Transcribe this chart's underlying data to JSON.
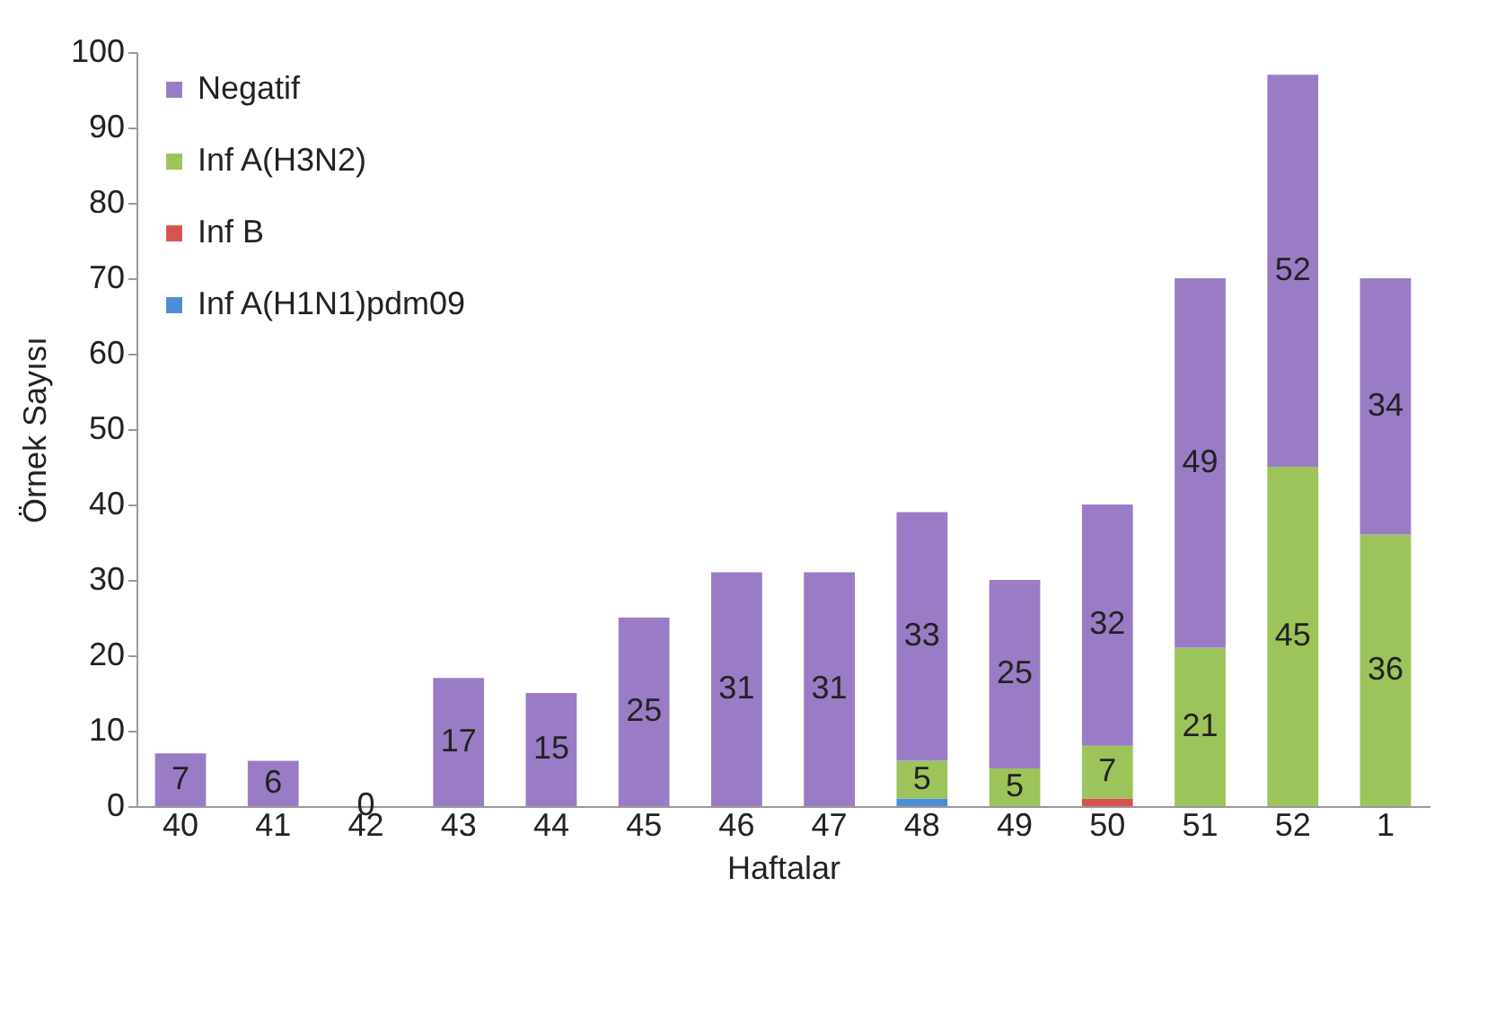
{
  "chart_data": {
    "type": "bar",
    "stacked": true,
    "xlabel": "Haftalar",
    "ylabel": "Örnek Sayısı",
    "categories": [
      "40",
      "41",
      "42",
      "43",
      "44",
      "45",
      "46",
      "47",
      "48",
      "49",
      "50",
      "51",
      "52",
      "1"
    ],
    "series": [
      {
        "name": "Inf A(H1N1)pdm09",
        "color": "#4a8fd6",
        "values": [
          0,
          0,
          0,
          0,
          0,
          0,
          0,
          0,
          1,
          0,
          0,
          0,
          0,
          0
        ],
        "value_labels": [
          null,
          null,
          null,
          null,
          null,
          null,
          null,
          null,
          null,
          null,
          null,
          null,
          null,
          null
        ]
      },
      {
        "name": "Inf B",
        "color": "#d9534f",
        "values": [
          0,
          0,
          0,
          0,
          0,
          0,
          0,
          0,
          0,
          0,
          1,
          0,
          0,
          0
        ],
        "value_labels": [
          null,
          null,
          null,
          null,
          null,
          null,
          null,
          null,
          null,
          null,
          null,
          null,
          null,
          null
        ]
      },
      {
        "name": "Inf A(H3N2)",
        "color": "#9cc45a",
        "values": [
          0,
          0,
          0,
          0,
          0,
          0,
          0,
          0,
          5,
          5,
          7,
          21,
          45,
          36
        ],
        "value_labels": [
          null,
          null,
          null,
          null,
          null,
          null,
          null,
          null,
          "5",
          "5",
          "7",
          "21",
          "45",
          "36"
        ]
      },
      {
        "name": "Negatif",
        "color": "#9a7cc6",
        "values": [
          7,
          6,
          0,
          17,
          15,
          25,
          31,
          31,
          33,
          25,
          32,
          49,
          52,
          34
        ],
        "value_labels": [
          "7",
          "6",
          "0",
          "17",
          "15",
          "25",
          "31",
          "31",
          "33",
          "25",
          "32",
          "49",
          "52",
          "34"
        ]
      }
    ],
    "ylim": [
      0,
      100
    ],
    "yticks": [
      0,
      10,
      20,
      30,
      40,
      50,
      60,
      70,
      80,
      90,
      100
    ],
    "grid": false,
    "legend": "top left"
  }
}
